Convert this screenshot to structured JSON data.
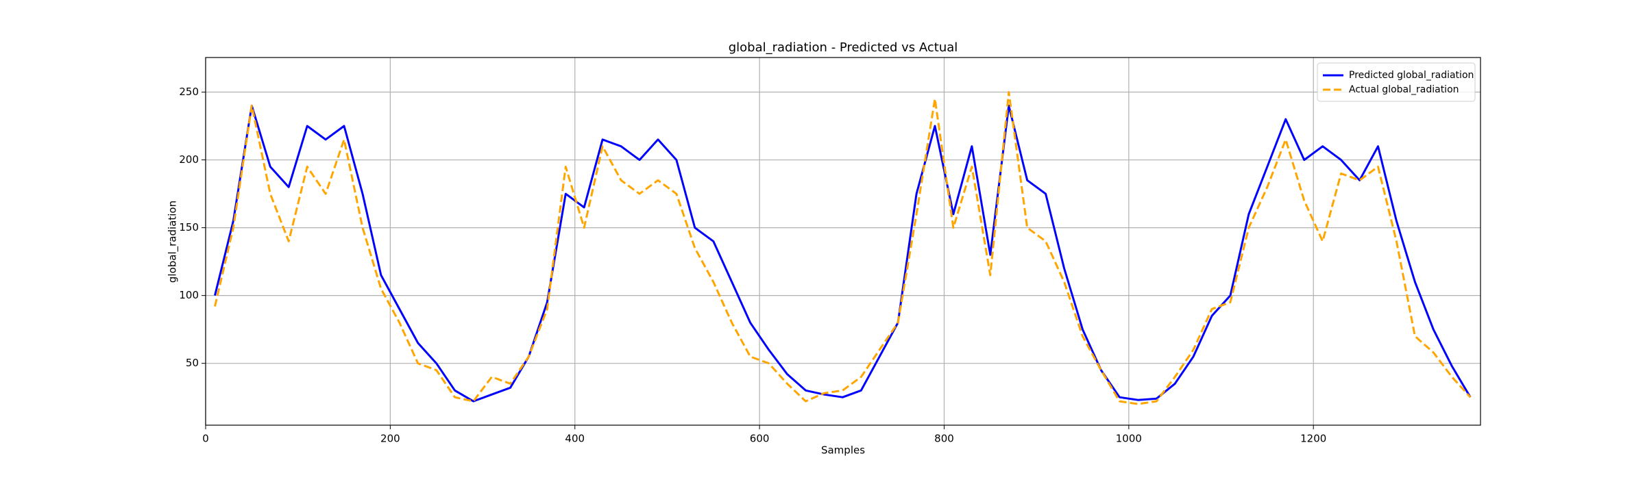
{
  "chart_data": {
    "type": "line",
    "title": "global_radiation - Predicted vs Actual",
    "xlabel": "Samples",
    "ylabel": "global_radiation",
    "x": [
      10,
      30,
      50,
      70,
      90,
      110,
      130,
      150,
      170,
      190,
      210,
      230,
      250,
      270,
      290,
      310,
      330,
      350,
      370,
      390,
      410,
      430,
      450,
      470,
      490,
      510,
      530,
      550,
      570,
      590,
      610,
      630,
      650,
      670,
      690,
      710,
      730,
      750,
      770,
      790,
      810,
      830,
      850,
      870,
      890,
      910,
      930,
      950,
      970,
      990,
      1010,
      1030,
      1050,
      1070,
      1090,
      1110,
      1130,
      1150,
      1170,
      1190,
      1210,
      1230,
      1250,
      1270,
      1290,
      1310,
      1330,
      1350,
      1370
    ],
    "series": [
      {
        "name": "Predicted global_radiation",
        "color": "#0000ff",
        "linestyle": "solid",
        "values": [
          100,
          155,
          240,
          195,
          180,
          225,
          215,
          225,
          175,
          115,
          90,
          65,
          50,
          30,
          22,
          27,
          32,
          55,
          95,
          175,
          165,
          215,
          210,
          200,
          215,
          200,
          150,
          140,
          110,
          80,
          60,
          42,
          30,
          27,
          25,
          30,
          55,
          80,
          175,
          225,
          160,
          210,
          130,
          240,
          185,
          175,
          120,
          75,
          45,
          25,
          23,
          24,
          35,
          55,
          85,
          100,
          160,
          195,
          230,
          200,
          210,
          200,
          185,
          210,
          155,
          110,
          75,
          48,
          25
        ]
      },
      {
        "name": "Actual global_radiation",
        "color": "#ffa500",
        "linestyle": "dashed",
        "values": [
          92,
          150,
          240,
          175,
          140,
          195,
          175,
          215,
          150,
          105,
          80,
          50,
          45,
          25,
          22,
          40,
          35,
          55,
          90,
          195,
          150,
          210,
          185,
          175,
          185,
          175,
          135,
          110,
          80,
          55,
          50,
          35,
          22,
          28,
          30,
          40,
          60,
          80,
          160,
          245,
          150,
          195,
          115,
          250,
          150,
          140,
          110,
          70,
          45,
          22,
          20,
          22,
          40,
          60,
          90,
          95,
          150,
          180,
          215,
          170,
          140,
          190,
          185,
          195,
          140,
          70,
          58,
          40,
          25
        ]
      }
    ],
    "xlim": [
      0,
      1381
    ],
    "ylim": [
      4.4,
      275.5
    ],
    "xticks": [
      0,
      200,
      400,
      600,
      800,
      1000,
      1200
    ],
    "yticks": [
      50,
      100,
      150,
      200,
      250
    ],
    "grid": true,
    "legend": "upper right"
  }
}
